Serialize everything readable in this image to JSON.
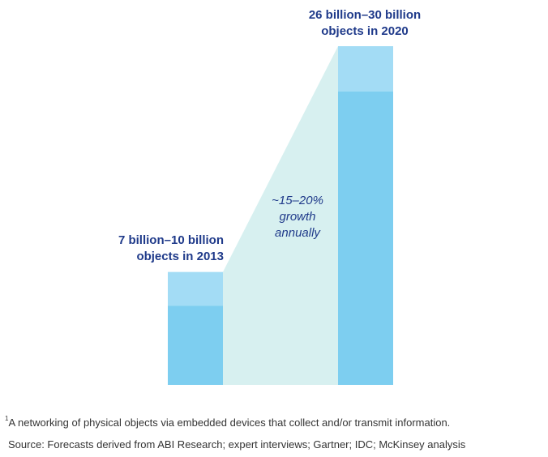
{
  "chart_data": {
    "type": "bar",
    "categories": [
      "2013",
      "2020"
    ],
    "series": [
      {
        "name": "",
        "values": [
          7,
          26
        ],
        "color": "#7dcef0"
      },
      {
        "name": "",
        "values": [
          10,
          30
        ],
        "color": "#a3dcf5"
      }
    ],
    "ylim": [
      0,
      30
    ],
    "bar_labels": [
      {
        "line1": "7 billion–10 billion",
        "line2": "objects in 2013"
      },
      {
        "line1": "26 billion–30 billion",
        "line2": "objects in 2020"
      }
    ],
    "growth_annotation": [
      "~15–20%",
      "growth",
      "annually"
    ],
    "colors": {
      "bar_low": "#7dcef0",
      "bar_high": "#a3dcf5",
      "growth_area": "#d7f0f0",
      "label": "#1f3a8a"
    }
  },
  "footnote": {
    "marker": "1",
    "text": "A networking of physical objects via embedded devices that collect and/or transmit information."
  },
  "source": "Source: Forecasts derived from ABI Research; expert interviews; Gartner; IDC; McKinsey analysis"
}
